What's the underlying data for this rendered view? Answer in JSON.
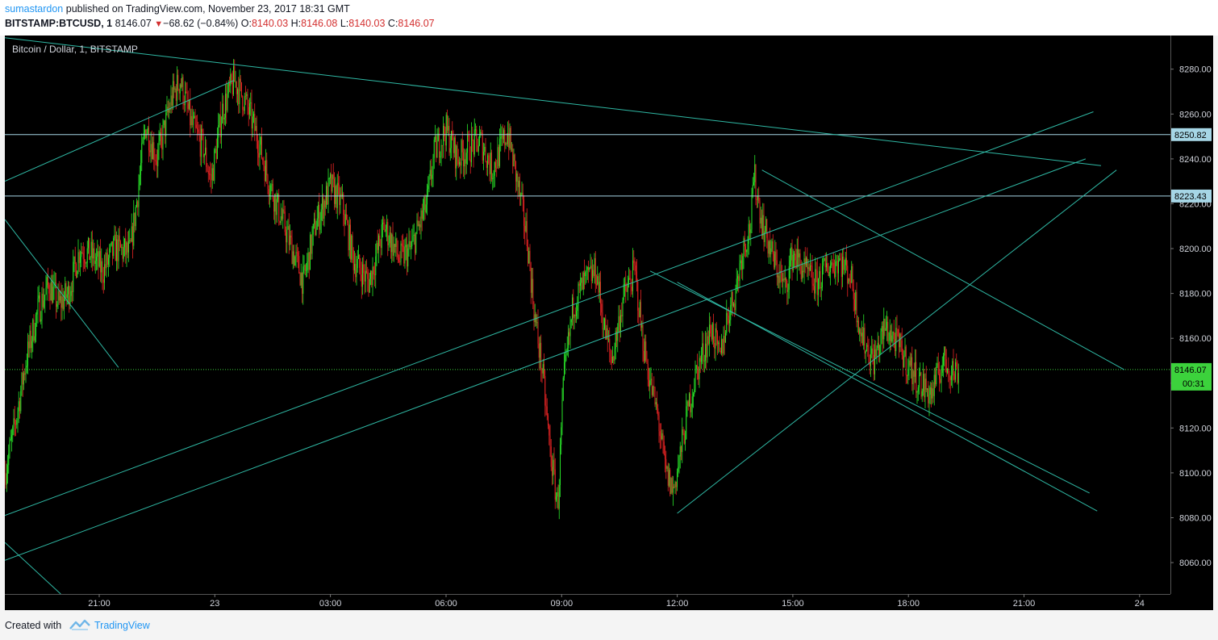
{
  "header": {
    "author": "sumastardon",
    "published_text": "published on TradingView.com, November 23, 2017 18:31 GMT",
    "symbol": "BITSTAMP:BTCUSD, 1",
    "last_price": "8146.07",
    "change_arrow": "▼",
    "change": "−68.62 (−0.84%)",
    "open_label": "O:",
    "open_value": "8140.03",
    "high_label": "H:",
    "high_value": "8146.08",
    "low_label": "L:",
    "low_value": "8140.03",
    "close_label": "C:",
    "close_value": "8146.07"
  },
  "footer": {
    "created_with": "Created with",
    "brand": "TradingView"
  },
  "colors": {
    "up_candle": "#29e829",
    "down_candle": "#e82424",
    "trendline": "#2fb8a4",
    "horizontal_line": "#a6d6e6",
    "current_price": "#3cd23c",
    "background": "#000000"
  },
  "chart_data": {
    "type": "candlestick",
    "title": "Bitcoin / Dollar, 1, BITSTAMP",
    "timeframe_minutes": 1,
    "x_ticks": [
      "21:00",
      "23",
      "03:00",
      "06:00",
      "09:00",
      "12:00",
      "15:00",
      "18:00",
      "21:00",
      "24"
    ],
    "x_tick_hours": [
      21,
      24,
      27,
      30,
      33,
      36,
      39,
      42,
      45,
      48
    ],
    "x_range_hours": [
      18.55,
      48.8
    ],
    "y_ticks": [
      8060,
      8080,
      8100,
      8120,
      8140,
      8160,
      8180,
      8200,
      8220,
      8240,
      8260,
      8280
    ],
    "ylim": [
      8046,
      8295
    ],
    "price_path": [
      [
        18.55,
        8100
      ],
      [
        18.8,
        8120
      ],
      [
        19.1,
        8150
      ],
      [
        19.4,
        8172
      ],
      [
        19.7,
        8184
      ],
      [
        19.95,
        8175
      ],
      [
        20.2,
        8180
      ],
      [
        20.5,
        8200
      ],
      [
        20.8,
        8197
      ],
      [
        21.1,
        8190
      ],
      [
        21.4,
        8200
      ],
      [
        21.8,
        8198
      ],
      [
        22.0,
        8225
      ],
      [
        22.2,
        8255
      ],
      [
        22.5,
        8240
      ],
      [
        22.9,
        8268
      ],
      [
        23.1,
        8275
      ],
      [
        23.4,
        8255
      ],
      [
        23.7,
        8245
      ],
      [
        23.9,
        8230
      ],
      [
        24.2,
        8262
      ],
      [
        24.5,
        8275
      ],
      [
        24.8,
        8265
      ],
      [
        25.1,
        8250
      ],
      [
        25.4,
        8230
      ],
      [
        25.7,
        8215
      ],
      [
        26.0,
        8200
      ],
      [
        26.3,
        8185
      ],
      [
        26.6,
        8210
      ],
      [
        27.0,
        8228
      ],
      [
        27.3,
        8220
      ],
      [
        27.6,
        8195
      ],
      [
        28.0,
        8185
      ],
      [
        28.4,
        8210
      ],
      [
        28.8,
        8195
      ],
      [
        29.1,
        8200
      ],
      [
        29.5,
        8220
      ],
      [
        29.7,
        8243
      ],
      [
        30.0,
        8253
      ],
      [
        30.3,
        8240
      ],
      [
        30.6,
        8245
      ],
      [
        30.9,
        8248
      ],
      [
        31.2,
        8235
      ],
      [
        31.5,
        8248
      ],
      [
        31.6,
        8252
      ],
      [
        31.9,
        8225
      ],
      [
        32.1,
        8205
      ],
      [
        32.3,
        8170
      ],
      [
        32.5,
        8145
      ],
      [
        32.7,
        8110
      ],
      [
        32.9,
        8085
      ],
      [
        33.05,
        8140
      ],
      [
        33.3,
        8175
      ],
      [
        33.6,
        8185
      ],
      [
        33.9,
        8190
      ],
      [
        34.1,
        8165
      ],
      [
        34.3,
        8150
      ],
      [
        34.6,
        8178
      ],
      [
        34.9,
        8190
      ],
      [
        35.1,
        8160
      ],
      [
        35.3,
        8140
      ],
      [
        35.5,
        8125
      ],
      [
        35.7,
        8100
      ],
      [
        35.9,
        8092
      ],
      [
        36.1,
        8110
      ],
      [
        36.3,
        8130
      ],
      [
        36.5,
        8145
      ],
      [
        36.7,
        8155
      ],
      [
        36.9,
        8165
      ],
      [
        37.1,
        8150
      ],
      [
        37.3,
        8170
      ],
      [
        37.5,
        8180
      ],
      [
        37.7,
        8200
      ],
      [
        37.9,
        8210
      ],
      [
        38.0,
        8232
      ],
      [
        38.2,
        8212
      ],
      [
        38.5,
        8195
      ],
      [
        38.8,
        8182
      ],
      [
        39.0,
        8198
      ],
      [
        39.3,
        8190
      ],
      [
        39.6,
        8184
      ],
      [
        39.9,
        8192
      ],
      [
        40.2,
        8195
      ],
      [
        40.5,
        8188
      ],
      [
        40.8,
        8160
      ],
      [
        41.1,
        8150
      ],
      [
        41.4,
        8165
      ],
      [
        41.7,
        8158
      ],
      [
        42.0,
        8148
      ],
      [
        42.3,
        8140
      ],
      [
        42.6,
        8135
      ],
      [
        42.9,
        8150
      ],
      [
        43.2,
        8145
      ],
      [
        43.3,
        8146.07
      ]
    ],
    "current_price": 8146.07,
    "countdown": "00:31",
    "horizontal_lines": [
      8250.82,
      8223.43
    ],
    "trendlines": [
      [
        [
          18.55,
          8294
        ],
        [
          47.0,
          8237
        ]
      ],
      [
        [
          18.55,
          8230
        ],
        [
          24.5,
          8275
        ]
      ],
      [
        [
          18.55,
          8213
        ],
        [
          21.5,
          8147
        ]
      ],
      [
        [
          18.55,
          8081
        ],
        [
          46.8,
          8261
        ]
      ],
      [
        [
          18.55,
          8061
        ],
        [
          46.6,
          8240
        ]
      ],
      [
        [
          18.55,
          8069
        ],
        [
          20.0,
          8046
        ]
      ],
      [
        [
          36.0,
          8082
        ],
        [
          47.4,
          8235
        ]
      ],
      [
        [
          38.2,
          8235
        ],
        [
          47.6,
          8146
        ]
      ],
      [
        [
          35.3,
          8190
        ],
        [
          46.7,
          8091
        ]
      ],
      [
        [
          36.0,
          8185
        ],
        [
          46.9,
          8083
        ]
      ]
    ]
  }
}
